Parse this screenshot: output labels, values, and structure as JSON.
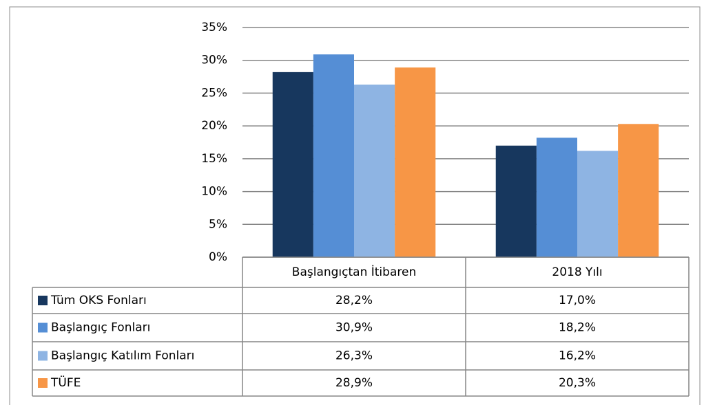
{
  "chart_data": {
    "type": "bar",
    "categories": [
      "Başlangıçtan İtibaren",
      "2018 Yılı"
    ],
    "series": [
      {
        "name": "Tüm OKS Fonları",
        "color": "#17375e",
        "values": [
          28.2,
          17.0
        ],
        "value_labels": [
          "28,2%",
          "17,0%"
        ]
      },
      {
        "name": "Başlangıç Fonları",
        "color": "#558ed5",
        "values": [
          30.9,
          18.2
        ],
        "value_labels": [
          "30,9%",
          "18,2%"
        ]
      },
      {
        "name": "Başlangıç Katılım Fonları",
        "color": "#8eb4e3",
        "values": [
          26.3,
          16.2
        ],
        "value_labels": [
          "26,3%",
          "16,2%"
        ]
      },
      {
        "name": "TÜFE",
        "color": "#f79646",
        "values": [
          28.9,
          20.3
        ],
        "value_labels": [
          "28,9%",
          "20,3%"
        ]
      }
    ],
    "ylim": [
      0,
      35
    ],
    "yticks": [
      {
        "value": 0,
        "label": "0%"
      },
      {
        "value": 5,
        "label": "5%"
      },
      {
        "value": 10,
        "label": "10%"
      },
      {
        "value": 15,
        "label": "15%"
      },
      {
        "value": 20,
        "label": "20%"
      },
      {
        "value": 25,
        "label": "25%"
      },
      {
        "value": 30,
        "label": "30%"
      },
      {
        "value": 35,
        "label": "35%"
      }
    ],
    "grid": true
  }
}
